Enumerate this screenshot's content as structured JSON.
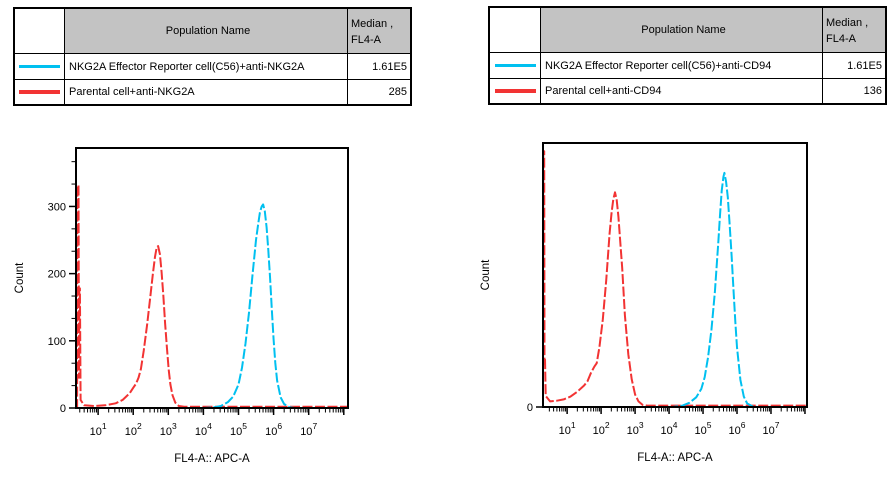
{
  "tables": {
    "left": {
      "header": {
        "population": "Population Name",
        "median_line1": "Median ,",
        "median_line2": "FL4-A"
      },
      "rows": [
        {
          "color": "#00c0f0",
          "name": "NKG2A Effector Reporter cell(C56)+anti-NKG2A",
          "median": "1.61E5"
        },
        {
          "color": "#f23333",
          "name": "Parental cell+anti-NKG2A",
          "median": "285"
        }
      ]
    },
    "right": {
      "header": {
        "population": "Population Name",
        "median_line1": "Median ,",
        "median_line2": "FL4-A"
      },
      "rows": [
        {
          "color": "#00c0f0",
          "name": "NKG2A  Effector Reporter cell(C56)+anti-CD94",
          "median": "1.61E5"
        },
        {
          "color": "#f23333",
          "name": "Parental cell+anti-CD94",
          "median": "136"
        }
      ]
    }
  },
  "chart_data": [
    {
      "type": "line",
      "title": "",
      "x_axis": {
        "scale": "log10",
        "label": "FL4-A:: APC-A",
        "xlim_log10": [
          0.37,
          8.12
        ],
        "major_tick_exponents": [
          1,
          2,
          3,
          4,
          5,
          6,
          7
        ]
      },
      "y_axis": {
        "label": "Count",
        "ticks": [
          0,
          100,
          200,
          300
        ],
        "minor_divisions": 3,
        "ylim": [
          0,
          387
        ]
      },
      "legend_position": "none",
      "grid": false,
      "series": [
        {
          "id": "parental",
          "name": "Parental cell+anti-NKG2A",
          "color": "#f23333",
          "median": "285",
          "points": [
            [
              0.37,
              0
            ],
            [
              0.4,
              0
            ],
            [
              0.41,
              330
            ],
            [
              0.44,
              332
            ],
            [
              0.455,
              45
            ],
            [
              0.465,
              178
            ],
            [
              0.48,
              178
            ],
            [
              0.5,
              12
            ],
            [
              0.6,
              4
            ],
            [
              0.9,
              3
            ],
            [
              1.2,
              4
            ],
            [
              1.5,
              7
            ],
            [
              1.7,
              12
            ],
            [
              1.9,
              22
            ],
            [
              2.0,
              30
            ],
            [
              2.08,
              36
            ],
            [
              2.15,
              45
            ],
            [
              2.22,
              58
            ],
            [
              2.3,
              85
            ],
            [
              2.4,
              125
            ],
            [
              2.5,
              172
            ],
            [
              2.56,
              200
            ],
            [
              2.62,
              225
            ],
            [
              2.67,
              239
            ],
            [
              2.71,
              241
            ],
            [
              2.76,
              229
            ],
            [
              2.81,
              202
            ],
            [
              2.86,
              166
            ],
            [
              2.91,
              126
            ],
            [
              2.96,
              90
            ],
            [
              3.01,
              57
            ],
            [
              3.06,
              35
            ],
            [
              3.12,
              19
            ],
            [
              3.2,
              8
            ],
            [
              3.3,
              3
            ],
            [
              3.45,
              2
            ],
            [
              3.6,
              2
            ],
            [
              8.12,
              2
            ]
          ]
        },
        {
          "id": "reporter",
          "name": "NKG2A Effector Reporter cell(C56)+anti-NKG2A",
          "color": "#00c0f0",
          "median": "1.61E5",
          "points": [
            [
              0.37,
              0
            ],
            [
              4.0,
              0
            ],
            [
              4.3,
              1
            ],
            [
              4.5,
              3
            ],
            [
              4.7,
              9
            ],
            [
              4.85,
              17
            ],
            [
              5.0,
              35
            ],
            [
              5.1,
              60
            ],
            [
              5.2,
              96
            ],
            [
              5.3,
              142
            ],
            [
              5.4,
              198
            ],
            [
              5.5,
              250
            ],
            [
              5.56,
              274
            ],
            [
              5.61,
              291
            ],
            [
              5.66,
              300
            ],
            [
              5.7,
              303
            ],
            [
              5.75,
              293
            ],
            [
              5.8,
              269
            ],
            [
              5.85,
              235
            ],
            [
              5.9,
              193
            ],
            [
              5.95,
              147
            ],
            [
              6.0,
              102
            ],
            [
              6.05,
              67
            ],
            [
              6.1,
              41
            ],
            [
              6.2,
              16
            ],
            [
              6.3,
              6
            ],
            [
              6.45,
              1
            ],
            [
              6.6,
              0
            ],
            [
              8.12,
              0
            ]
          ]
        }
      ]
    },
    {
      "type": "line",
      "title": "",
      "x_axis": {
        "scale": "log10",
        "label": "FL4-A:: APC-A",
        "xlim_log10": [
          0.29,
          8.06
        ],
        "major_tick_exponents": [
          1,
          2,
          3,
          4,
          5,
          6,
          7
        ]
      },
      "y_axis": {
        "label": "Count",
        "ticks": [
          0
        ],
        "minor_divisions": 0,
        "ylim": [
          0,
          380
        ]
      },
      "legend_position": "none",
      "grid": false,
      "series": [
        {
          "id": "parental",
          "name": "Parental cell+anti-CD94",
          "color": "#f23333",
          "median": "136",
          "points": [
            [
              0.29,
              0
            ],
            [
              0.3,
              367
            ],
            [
              0.325,
              368
            ],
            [
              0.335,
              62
            ],
            [
              0.35,
              70
            ],
            [
              0.37,
              16
            ],
            [
              0.5,
              8
            ],
            [
              0.7,
              9
            ],
            [
              0.9,
              11
            ],
            [
              1.1,
              15
            ],
            [
              1.3,
              22
            ],
            [
              1.5,
              31
            ],
            [
              1.6,
              37
            ],
            [
              1.7,
              49
            ],
            [
              1.8,
              58
            ],
            [
              1.87,
              63
            ],
            [
              1.95,
              86
            ],
            [
              2.05,
              126
            ],
            [
              2.15,
              182
            ],
            [
              2.25,
              250
            ],
            [
              2.31,
              280
            ],
            [
              2.36,
              299
            ],
            [
              2.41,
              309
            ],
            [
              2.46,
              298
            ],
            [
              2.51,
              274
            ],
            [
              2.56,
              241
            ],
            [
              2.62,
              200
            ],
            [
              2.7,
              132
            ],
            [
              2.8,
              76
            ],
            [
              2.9,
              40
            ],
            [
              3.0,
              18
            ],
            [
              3.1,
              8
            ],
            [
              3.22,
              3
            ],
            [
              3.35,
              2
            ],
            [
              8.06,
              2
            ]
          ]
        },
        {
          "id": "reporter",
          "name": "NKG2A  Effector Reporter cell(C56)+anti-CD94",
          "color": "#00c0f0",
          "median": "1.61E5",
          "points": [
            [
              0.29,
              0
            ],
            [
              4.1,
              0
            ],
            [
              4.4,
              2
            ],
            [
              4.6,
              6
            ],
            [
              4.8,
              14
            ],
            [
              4.95,
              26
            ],
            [
              5.05,
              43
            ],
            [
              5.15,
              72
            ],
            [
              5.25,
              112
            ],
            [
              5.35,
              166
            ],
            [
              5.45,
              237
            ],
            [
              5.5,
              276
            ],
            [
              5.55,
              311
            ],
            [
              5.6,
              331
            ],
            [
              5.63,
              337
            ],
            [
              5.68,
              324
            ],
            [
              5.73,
              302
            ],
            [
              5.78,
              266
            ],
            [
              5.84,
              218
            ],
            [
              5.9,
              166
            ],
            [
              5.95,
              123
            ],
            [
              6.0,
              86
            ],
            [
              6.1,
              39
            ],
            [
              6.2,
              15
            ],
            [
              6.3,
              5
            ],
            [
              6.45,
              1
            ],
            [
              6.6,
              0
            ],
            [
              8.06,
              0
            ]
          ]
        }
      ]
    }
  ]
}
